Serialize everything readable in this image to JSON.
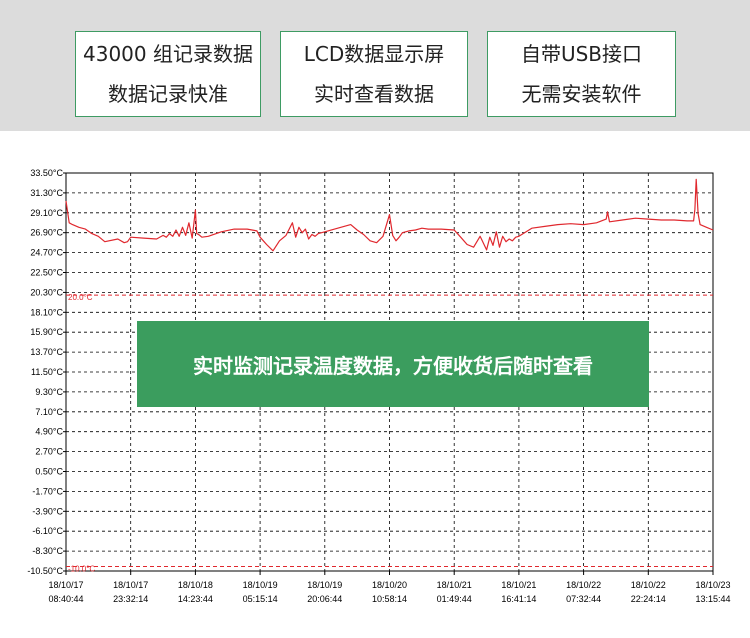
{
  "features": [
    {
      "line1": "43000 组记录数据",
      "line2": "数据记录快准"
    },
    {
      "line1": "LCD数据显示屏",
      "line2": "实时查看数据"
    },
    {
      "line1": "自带USB接口",
      "line2": "无需安装软件"
    }
  ],
  "banner": {
    "text": "实时监测记录温度数据，方便收货后随时查看"
  },
  "colors": {
    "accent_green": "#3b9d5e",
    "line": "#e0282e",
    "limit": "#e0282e",
    "top_band": "#dcdcdc"
  },
  "chart_data": {
    "type": "line",
    "y_unit": "°C",
    "ylim": [
      -10.5,
      33.5
    ],
    "yticks": [
      "33.50°C",
      "31.30°C",
      "29.10°C",
      "26.90°C",
      "24.70°C",
      "22.50°C",
      "20.30°C",
      "18.10°C",
      "15.90°C",
      "13.70°C",
      "11.50°C",
      "9.30°C",
      "7.10°C",
      "4.90°C",
      "2.70°C",
      "0.50°C",
      "-1.70°C",
      "-3.90°C",
      "-6.10°C",
      "-8.30°C",
      "-10.50°C"
    ],
    "xticks": [
      {
        "date": "18/10/17",
        "time": "08:40:44"
      },
      {
        "date": "18/10/17",
        "time": "23:32:14"
      },
      {
        "date": "18/10/18",
        "time": "14:23:44"
      },
      {
        "date": "18/10/19",
        "time": "05:15:14"
      },
      {
        "date": "18/10/19",
        "time": "20:06:44"
      },
      {
        "date": "18/10/20",
        "time": "10:58:14"
      },
      {
        "date": "18/10/21",
        "time": "01:49:44"
      },
      {
        "date": "18/10/21",
        "time": "16:41:14"
      },
      {
        "date": "18/10/22",
        "time": "07:32:44"
      },
      {
        "date": "18/10/22",
        "time": "22:24:14"
      },
      {
        "date": "18/10/23",
        "time": "13:15:44"
      }
    ],
    "grid": true,
    "limits": [
      {
        "value": 20.0,
        "label": "20.0°C"
      },
      {
        "value": -10.0,
        "label": "-10.0°C"
      }
    ],
    "series": [
      {
        "x": [
          0,
          0.05,
          0.1,
          0.2,
          0.3,
          0.4,
          0.5,
          0.6,
          0.8,
          0.9,
          0.95,
          1.0,
          1.2,
          1.4,
          1.5,
          1.55,
          1.6,
          1.65,
          1.7,
          1.75,
          1.8,
          1.85,
          1.9,
          1.95,
          2.0,
          2.02,
          2.05,
          2.1,
          2.2,
          2.4,
          2.6,
          2.8,
          2.95,
          3.0,
          3.05,
          3.1,
          3.2,
          3.3,
          3.4,
          3.5,
          3.55,
          3.6,
          3.65,
          3.7,
          3.75,
          3.8,
          3.85,
          3.9,
          4.0,
          4.2,
          4.4,
          4.5,
          4.6,
          4.7,
          4.8,
          4.9,
          5.0,
          5.05,
          5.1,
          5.15,
          5.2,
          5.3,
          5.4,
          5.5,
          5.6,
          5.8,
          6.0,
          6.1,
          6.2,
          6.3,
          6.4,
          6.5,
          6.55,
          6.6,
          6.65,
          6.7,
          6.75,
          6.8,
          6.85,
          6.9,
          6.95,
          7.0,
          7.2,
          7.4,
          7.6,
          7.8,
          8.0,
          8.2,
          8.35,
          8.37,
          8.4,
          8.6,
          8.8,
          9.0,
          9.2,
          9.4,
          9.6,
          9.7,
          9.72,
          9.74,
          9.77,
          9.8,
          9.9,
          10.0
        ],
        "values": [
          30.4,
          28.0,
          27.8,
          27.5,
          27.3,
          26.8,
          26.5,
          25.9,
          26.2,
          25.8,
          25.9,
          26.4,
          26.3,
          26.2,
          26.6,
          26.4,
          26.8,
          26.5,
          27.2,
          26.5,
          27.5,
          26.6,
          28.0,
          26.3,
          29.4,
          26.8,
          26.7,
          26.4,
          26.5,
          27.0,
          27.3,
          27.3,
          27.1,
          26.4,
          26.0,
          25.6,
          24.9,
          26.0,
          26.6,
          28.0,
          26.4,
          27.5,
          26.9,
          27.3,
          26.2,
          26.7,
          26.5,
          26.8,
          27.0,
          27.4,
          27.8,
          27.2,
          26.7,
          26.0,
          25.8,
          26.5,
          28.9,
          26.6,
          26.0,
          26.4,
          26.9,
          27.1,
          27.2,
          27.4,
          27.3,
          27.3,
          27.2,
          26.4,
          25.6,
          25.3,
          26.5,
          25.0,
          26.4,
          25.5,
          27.0,
          25.3,
          26.5,
          25.9,
          26.2,
          26.0,
          26.4,
          26.5,
          27.4,
          27.6,
          27.8,
          27.9,
          27.8,
          28.0,
          28.4,
          29.2,
          28.1,
          28.3,
          28.5,
          28.4,
          28.3,
          28.3,
          28.2,
          28.2,
          29.5,
          32.8,
          29.0,
          27.8,
          27.5,
          27.2
        ]
      }
    ]
  }
}
